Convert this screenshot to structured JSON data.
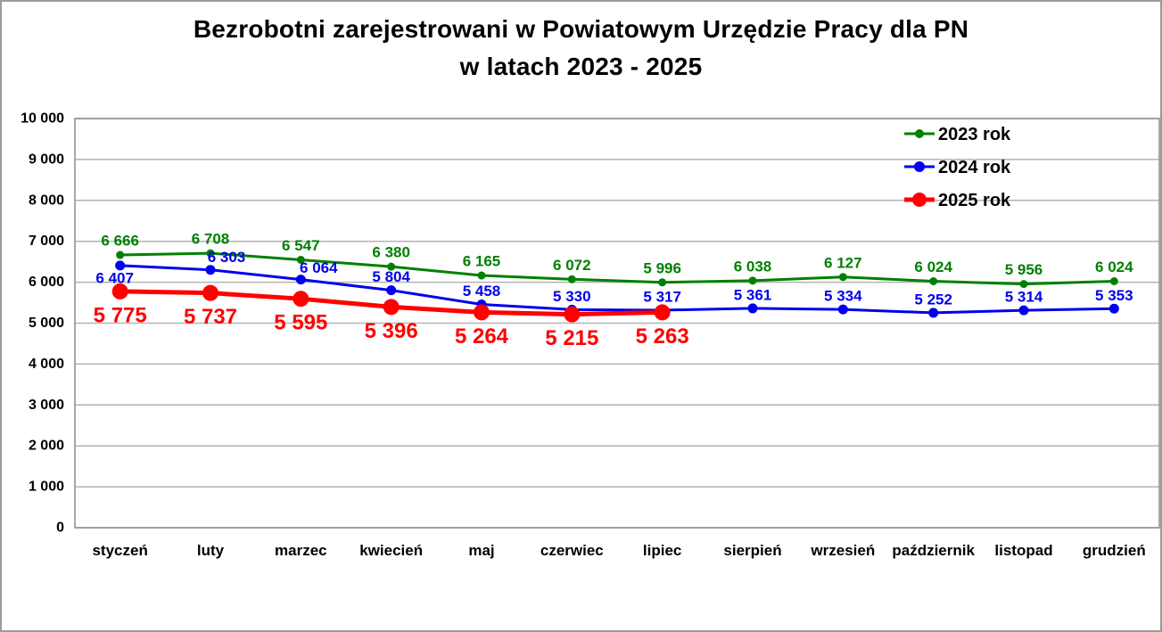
{
  "title": {
    "line1": "Bezrobotni zarejestrowani w Powiatowym Urzędzie Pracy dla PN",
    "line2": "w latach 2023 - 2025"
  },
  "colors": {
    "series_2023": "#008000",
    "series_2024": "#0000EE",
    "series_2025": "#FF0000",
    "gridline": "#b3b3b3",
    "plot_border": "#8c8c8c",
    "text": "#000000"
  },
  "chart_data": {
    "type": "line",
    "title": "Bezrobotni zarejestrowani w Powiatowym Urzędzie Pracy dla PN w latach 2023 - 2025",
    "categories": [
      "styczeń",
      "luty",
      "marzec",
      "kwiecień",
      "maj",
      "czerwiec",
      "lipiec",
      "sierpień",
      "wrzesień",
      "październik",
      "listopad",
      "grudzień"
    ],
    "series": [
      {
        "name": "2023 rok",
        "color": "#008000",
        "values": [
          6666,
          6708,
          6547,
          6380,
          6165,
          6072,
          5996,
          6038,
          6127,
          6024,
          5956,
          6024
        ]
      },
      {
        "name": "2024 rok",
        "color": "#0000EE",
        "values": [
          6407,
          6303,
          6064,
          5804,
          5458,
          5330,
          5317,
          5361,
          5334,
          5252,
          5314,
          5353
        ]
      },
      {
        "name": "2025 rok",
        "color": "#FF0000",
        "values": [
          5775,
          5737,
          5595,
          5396,
          5264,
          5215,
          5263
        ]
      }
    ],
    "xlabel": "",
    "ylabel": "",
    "ylim": [
      0,
      10000
    ],
    "ytick_step": 1000,
    "ytick_labels": [
      "0",
      "1 000",
      "2 000",
      "3 000",
      "4 000",
      "5 000",
      "6 000",
      "7 000",
      "8 000",
      "9 000",
      "10 000"
    ],
    "grid": "horizontal",
    "data_labels": true,
    "legend_position": "top-right"
  }
}
